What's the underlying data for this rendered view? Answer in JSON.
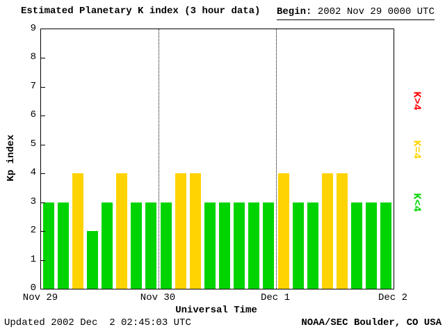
{
  "header": {
    "title": "Estimated Planetary K index (3 hour data)",
    "begin_label": "Begin:",
    "begin_value": " 2002 Nov 29 0000 UTC"
  },
  "chart_data": {
    "type": "bar",
    "title": "Estimated Planetary K index (3 hour data)",
    "begin": "2002 Nov 29 0000 UTC",
    "xlabel": "Universal Time",
    "ylabel": "Kp index",
    "ylim": [
      0,
      9
    ],
    "y_ticks": [
      0,
      1,
      2,
      3,
      4,
      5,
      6,
      7,
      8,
      9
    ],
    "x_tick_labels": [
      "Nov 29",
      "Nov 30",
      "Dec 1",
      "Dec 2"
    ],
    "hours_per_bar": 3,
    "values": [
      3,
      3,
      4,
      2,
      3,
      4,
      3,
      3,
      3,
      4,
      4,
      3,
      3,
      3,
      3,
      3,
      4,
      3,
      3,
      4,
      4,
      3,
      3,
      3
    ],
    "colors": {
      "below4": "#00d400",
      "equal4": "#ffd300",
      "above4": "#ff0000"
    },
    "grid": "vertical dotted day dividers",
    "legend_position": "right"
  },
  "legend": [
    {
      "label": "K>4",
      "color": "#ff0000"
    },
    {
      "label": "K=4",
      "color": "#ffd300"
    },
    {
      "label": "K<4",
      "color": "#00d400"
    }
  ],
  "footer": {
    "updated": "Updated 2002 Dec  2 02:45:03 UTC",
    "source": "NOAA/SEC Boulder, CO USA"
  }
}
